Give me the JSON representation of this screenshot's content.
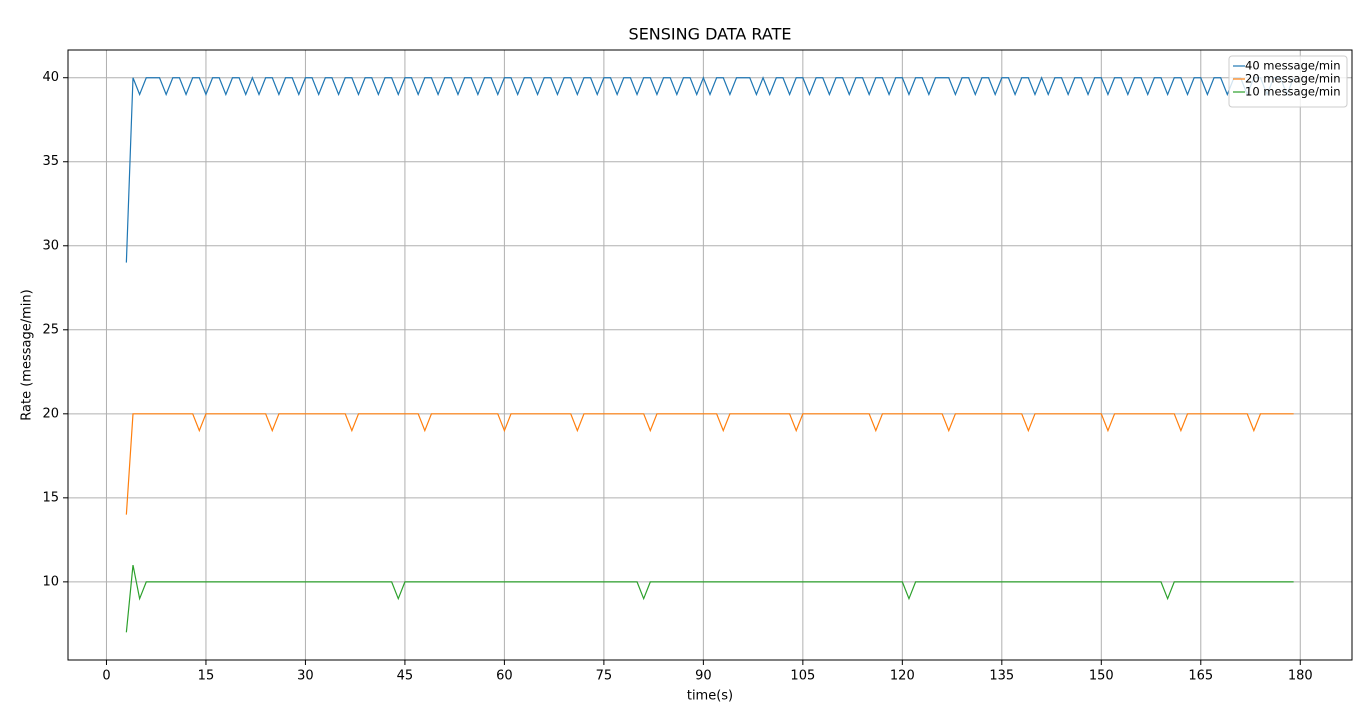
{
  "chart_data": {
    "type": "line",
    "title": "SENSING DATA RATE",
    "x_label": "time(s)",
    "y_label": "Rate (message/min)",
    "x": [
      3,
      4,
      5,
      6,
      7,
      8,
      9,
      10,
      11,
      12,
      13,
      14,
      15,
      16,
      17,
      18,
      19,
      20,
      21,
      22,
      23,
      24,
      25,
      26,
      27,
      28,
      29,
      30,
      31,
      32,
      33,
      34,
      35,
      36,
      37,
      38,
      39,
      40,
      41,
      42,
      43,
      44,
      45,
      46,
      47,
      48,
      49,
      50,
      51,
      52,
      53,
      54,
      55,
      56,
      57,
      58,
      59,
      60,
      61,
      62,
      63,
      64,
      65,
      66,
      67,
      68,
      69,
      70,
      71,
      72,
      73,
      74,
      75,
      76,
      77,
      78,
      79,
      80,
      81,
      82,
      83,
      84,
      85,
      86,
      87,
      88,
      89,
      90,
      91,
      92,
      93,
      94,
      95,
      96,
      97,
      98,
      99,
      100,
      101,
      102,
      103,
      104,
      105,
      106,
      107,
      108,
      109,
      110,
      111,
      112,
      113,
      114,
      115,
      116,
      117,
      118,
      119,
      120,
      121,
      122,
      123,
      124,
      125,
      126,
      127,
      128,
      129,
      130,
      131,
      132,
      133,
      134,
      135,
      136,
      137,
      138,
      139,
      140,
      141,
      142,
      143,
      144,
      145,
      146,
      147,
      148,
      149,
      150,
      151,
      152,
      153,
      154,
      155,
      156,
      157,
      158,
      159,
      160,
      161,
      162,
      163,
      164,
      165,
      166,
      167,
      168,
      169,
      170,
      171,
      172,
      173,
      174,
      175,
      176,
      177,
      178,
      179
    ],
    "series": [
      {
        "name": "40 message/min",
        "color": "#1f77b4",
        "values": [
          29,
          40,
          39,
          40,
          40,
          40,
          39,
          40,
          40,
          39,
          40,
          40,
          39,
          40,
          40,
          39,
          40,
          40,
          39,
          40,
          39,
          40,
          40,
          39,
          40,
          40,
          39,
          40,
          40,
          39,
          40,
          40,
          39,
          40,
          40,
          39,
          40,
          40,
          39,
          40,
          40,
          39,
          40,
          40,
          39,
          40,
          40,
          39,
          40,
          40,
          39,
          40,
          40,
          39,
          40,
          40,
          39,
          40,
          40,
          39,
          40,
          40,
          39,
          40,
          40,
          39,
          40,
          40,
          39,
          40,
          40,
          39,
          40,
          40,
          39,
          40,
          40,
          39,
          40,
          40,
          39,
          40,
          40,
          39,
          40,
          40,
          39,
          40,
          39,
          40,
          40,
          39,
          40,
          40,
          40,
          39,
          40,
          39,
          40,
          40,
          39,
          40,
          40,
          39,
          40,
          40,
          39,
          40,
          40,
          39,
          40,
          40,
          39,
          40,
          40,
          39,
          40,
          40,
          39,
          40,
          40,
          39,
          40,
          40,
          40,
          39,
          40,
          40,
          39,
          40,
          40,
          39,
          40,
          40,
          39,
          40,
          40,
          39,
          40,
          39,
          40,
          40,
          39,
          40,
          40,
          39,
          40,
          40,
          39,
          40,
          40,
          39,
          40,
          40,
          39,
          40,
          40,
          39,
          40,
          40,
          39,
          40,
          40,
          39,
          40,
          40,
          39,
          40,
          40,
          39,
          40,
          40,
          39,
          40,
          40,
          39,
          40
        ]
      },
      {
        "name": "20 message/min",
        "color": "#ff7f0e",
        "values": [
          14,
          20,
          20,
          20,
          20,
          20,
          20,
          20,
          20,
          20,
          20,
          19,
          20,
          20,
          20,
          20,
          20,
          20,
          20,
          20,
          20,
          20,
          19,
          20,
          20,
          20,
          20,
          20,
          20,
          20,
          20,
          20,
          20,
          20,
          19,
          20,
          20,
          20,
          20,
          20,
          20,
          20,
          20,
          20,
          20,
          19,
          20,
          20,
          20,
          20,
          20,
          20,
          20,
          20,
          20,
          20,
          20,
          19,
          20,
          20,
          20,
          20,
          20,
          20,
          20,
          20,
          20,
          20,
          19,
          20,
          20,
          20,
          20,
          20,
          20,
          20,
          20,
          20,
          20,
          19,
          20,
          20,
          20,
          20,
          20,
          20,
          20,
          20,
          20,
          20,
          19,
          20,
          20,
          20,
          20,
          20,
          20,
          20,
          20,
          20,
          20,
          19,
          20,
          20,
          20,
          20,
          20,
          20,
          20,
          20,
          20,
          20,
          20,
          19,
          20,
          20,
          20,
          20,
          20,
          20,
          20,
          20,
          20,
          20,
          19,
          20,
          20,
          20,
          20,
          20,
          20,
          20,
          20,
          20,
          20,
          20,
          19,
          20,
          20,
          20,
          20,
          20,
          20,
          20,
          20,
          20,
          20,
          20,
          19,
          20,
          20,
          20,
          20,
          20,
          20,
          20,
          20,
          20,
          20,
          19,
          20,
          20,
          20,
          20,
          20,
          20,
          20,
          20,
          20,
          20,
          19,
          20,
          20,
          20,
          20,
          20,
          20
        ]
      },
      {
        "name": "10 message/min",
        "color": "#2ca02c",
        "values": [
          7,
          11,
          9,
          10,
          10,
          10,
          10,
          10,
          10,
          10,
          10,
          10,
          10,
          10,
          10,
          10,
          10,
          10,
          10,
          10,
          10,
          10,
          10,
          10,
          10,
          10,
          10,
          10,
          10,
          10,
          10,
          10,
          10,
          10,
          10,
          10,
          10,
          10,
          10,
          10,
          10,
          9,
          10,
          10,
          10,
          10,
          10,
          10,
          10,
          10,
          10,
          10,
          10,
          10,
          10,
          10,
          10,
          10,
          10,
          10,
          10,
          10,
          10,
          10,
          10,
          10,
          10,
          10,
          10,
          10,
          10,
          10,
          10,
          10,
          10,
          10,
          10,
          10,
          9,
          10,
          10,
          10,
          10,
          10,
          10,
          10,
          10,
          10,
          10,
          10,
          10,
          10,
          10,
          10,
          10,
          10,
          10,
          10,
          10,
          10,
          10,
          10,
          10,
          10,
          10,
          10,
          10,
          10,
          10,
          10,
          10,
          10,
          10,
          10,
          10,
          10,
          10,
          10,
          9,
          10,
          10,
          10,
          10,
          10,
          10,
          10,
          10,
          10,
          10,
          10,
          10,
          10,
          10,
          10,
          10,
          10,
          10,
          10,
          10,
          10,
          10,
          10,
          10,
          10,
          10,
          10,
          10,
          10,
          10,
          10,
          10,
          10,
          10,
          10,
          10,
          10,
          10,
          9,
          10,
          10,
          10,
          10,
          10,
          10,
          10,
          10,
          10,
          10,
          10,
          10,
          10,
          10,
          10,
          10,
          10,
          10,
          10
        ]
      }
    ],
    "xlim": [
      -5.8,
      187.8
    ],
    "ylim": [
      5.35,
      41.65
    ],
    "xticks": [
      0,
      15,
      30,
      45,
      60,
      75,
      90,
      105,
      120,
      135,
      150,
      165,
      180
    ],
    "yticks": [
      10,
      15,
      20,
      25,
      30,
      35,
      40
    ],
    "grid": true,
    "legend": "upper right"
  }
}
